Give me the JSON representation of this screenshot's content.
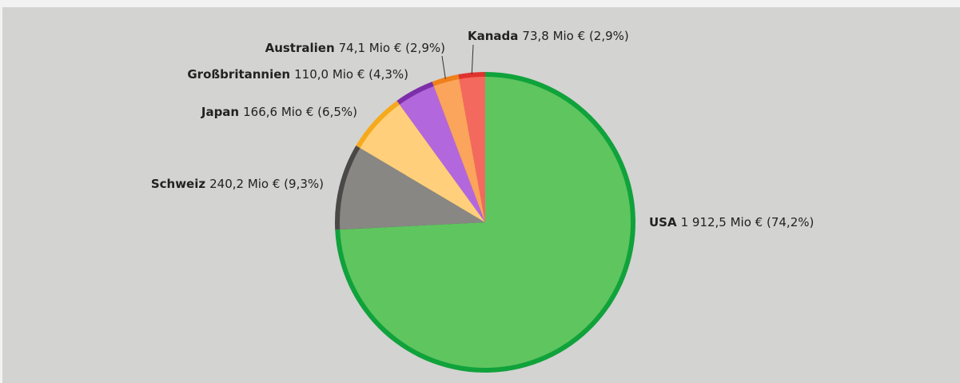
{
  "chart_data": {
    "type": "pie",
    "categories": [
      "USA",
      "Schweiz",
      "Japan",
      "Großbritannien",
      "Australien",
      "Kanada"
    ],
    "values": [
      1912.5,
      240.2,
      166.6,
      110.0,
      74.1,
      73.8
    ],
    "value_labels": [
      "1 912,5 Mio € (74,2%)",
      "240,2 Mio € (9,3%)",
      "166,6 Mio € (6,5%)",
      "110,0 Mio € (4,3%)",
      "74,1 Mio € (2,9%)",
      "73,8 Mio € (2,9%)"
    ],
    "colors": [
      "#5fc55f",
      "#888784",
      "#ffcf7b",
      "#b367dc",
      "#fba45b",
      "#f4695e"
    ],
    "edge_colors": [
      "#10a23b",
      "#4a4947",
      "#f5aa1c",
      "#7c2fa8",
      "#f0801b",
      "#e0332e"
    ]
  }
}
